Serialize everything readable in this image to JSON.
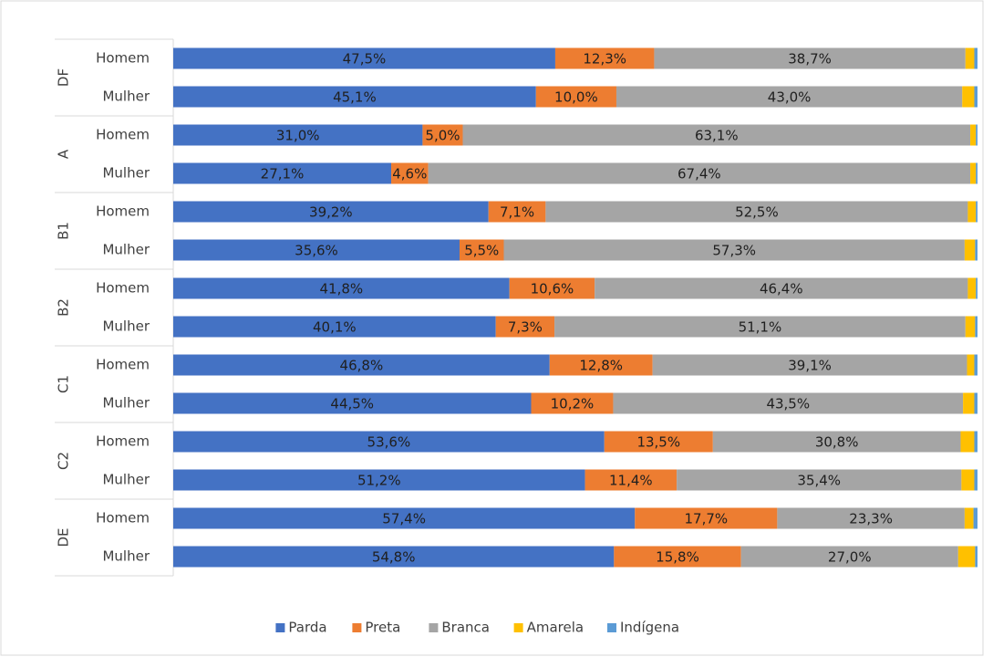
{
  "chart_data": {
    "type": "stacked-bar-horizontal",
    "groups": [
      "DF",
      "A",
      "B1",
      "B2",
      "C1",
      "C2",
      "DE"
    ],
    "categories": [
      "Homem",
      "Mulher",
      "Homem",
      "Mulher",
      "Homem",
      "Mulher",
      "Homem",
      "Mulher",
      "Homem",
      "Mulher",
      "Homem",
      "Mulher",
      "Homem",
      "Mulher"
    ],
    "xlim": [
      0,
      100
    ],
    "legend": "bottom",
    "series": [
      {
        "name": "Parda",
        "color": "#4472c4",
        "values": [
          47.5,
          45.1,
          31.0,
          27.1,
          39.2,
          35.6,
          41.8,
          40.1,
          46.8,
          44.5,
          53.6,
          51.2,
          57.4,
          54.8
        ],
        "value_labels": [
          "47,5%",
          "45,1%",
          "31,0%",
          "27,1%",
          "39,2%",
          "35,6%",
          "41,8%",
          "40,1%",
          "46,8%",
          "44,5%",
          "53,6%",
          "51,2%",
          "57,4%",
          "54,8%"
        ]
      },
      {
        "name": "Preta",
        "color": "#ed7d31",
        "values": [
          12.3,
          10.0,
          5.0,
          4.6,
          7.1,
          5.5,
          10.6,
          7.3,
          12.8,
          10.2,
          13.5,
          11.4,
          17.7,
          15.8
        ],
        "value_labels": [
          "12,3%",
          "10,0%",
          "5,0%",
          "4,6%",
          "7,1%",
          "5,5%",
          "10,6%",
          "7,3%",
          "12,8%",
          "10,2%",
          "13,5%",
          "11,4%",
          "17,7%",
          "15,8%"
        ]
      },
      {
        "name": "Branca",
        "color": "#a5a5a5",
        "values": [
          38.7,
          43.0,
          63.1,
          67.4,
          52.5,
          57.3,
          46.4,
          51.1,
          39.1,
          43.5,
          30.8,
          35.4,
          23.3,
          27.0
        ],
        "value_labels": [
          "38,7%",
          "43,0%",
          "63,1%",
          "67,4%",
          "52,5%",
          "57,3%",
          "46,4%",
          "51,1%",
          "39,1%",
          "43,5%",
          "30,8%",
          "35,4%",
          "23,3%",
          "27,0%"
        ]
      },
      {
        "name": "Amarela",
        "color": "#ffc000",
        "values": [
          1.1,
          1.5,
          0.7,
          0.7,
          1.0,
          1.3,
          1.0,
          1.2,
          0.9,
          1.4,
          1.7,
          1.6,
          1.1,
          2.1
        ]
      },
      {
        "name": "Indígena",
        "color": "#5b9bd5",
        "values": [
          0.4,
          0.4,
          0.2,
          0.2,
          0.2,
          0.3,
          0.2,
          0.3,
          0.4,
          0.4,
          0.4,
          0.4,
          0.5,
          0.3
        ]
      }
    ]
  }
}
